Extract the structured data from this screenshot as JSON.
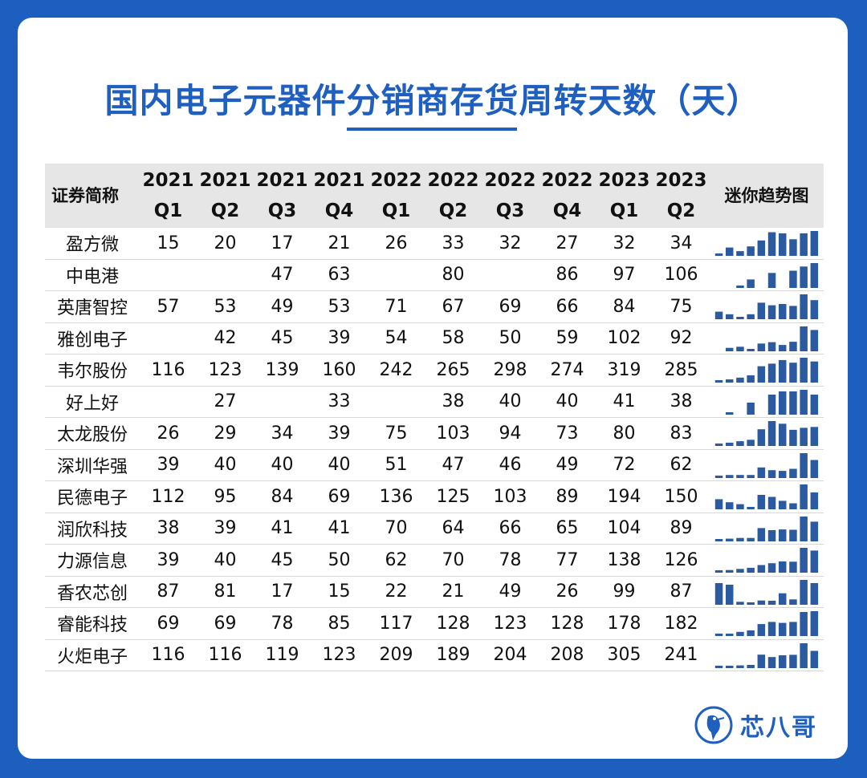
{
  "title": "国内电子元器件分销商存货周转天数（天）",
  "header": {
    "name_col": "证券简称",
    "trend_col": "迷你趋势图"
  },
  "colors": {
    "accent": "#1f5fbf",
    "bar": "#2c5aa0",
    "header_bg": "#e6e6e6"
  },
  "logo": {
    "icon": "bird-logo-icon",
    "text": "芯八哥"
  },
  "chart_data": {
    "type": "table",
    "title": "国内电子元器件分销商存货周转天数（天）",
    "columns": [
      {
        "year": "2021",
        "quarter": "Q1"
      },
      {
        "year": "2021",
        "quarter": "Q2"
      },
      {
        "year": "2021",
        "quarter": "Q3"
      },
      {
        "year": "2021",
        "quarter": "Q4"
      },
      {
        "year": "2022",
        "quarter": "Q1"
      },
      {
        "year": "2022",
        "quarter": "Q2"
      },
      {
        "year": "2022",
        "quarter": "Q3"
      },
      {
        "year": "2022",
        "quarter": "Q4"
      },
      {
        "year": "2023",
        "quarter": "Q1"
      },
      {
        "year": "2023",
        "quarter": "Q2"
      }
    ],
    "rows": [
      {
        "name": "盈方微",
        "values": [
          15,
          20,
          17,
          21,
          26,
          33,
          32,
          27,
          32,
          34
        ]
      },
      {
        "name": "中电港",
        "values": [
          null,
          null,
          47,
          63,
          null,
          80,
          null,
          86,
          97,
          106
        ]
      },
      {
        "name": "英唐智控",
        "values": [
          57,
          53,
          49,
          53,
          71,
          67,
          69,
          66,
          84,
          75
        ]
      },
      {
        "name": "雅创电子",
        "values": [
          null,
          42,
          45,
          39,
          54,
          58,
          50,
          59,
          102,
          92
        ]
      },
      {
        "name": "韦尔股份",
        "values": [
          116,
          123,
          139,
          160,
          242,
          265,
          298,
          274,
          319,
          285
        ]
      },
      {
        "name": "好上好",
        "values": [
          null,
          27,
          null,
          33,
          null,
          38,
          40,
          40,
          41,
          38
        ]
      },
      {
        "name": "太龙股份",
        "values": [
          26,
          29,
          34,
          39,
          75,
          103,
          94,
          73,
          80,
          83
        ]
      },
      {
        "name": "深圳华强",
        "values": [
          39,
          40,
          40,
          40,
          51,
          47,
          46,
          49,
          72,
          62
        ]
      },
      {
        "name": "民德电子",
        "values": [
          112,
          95,
          84,
          69,
          136,
          125,
          103,
          89,
          194,
          150
        ]
      },
      {
        "name": "润欣科技",
        "values": [
          38,
          39,
          41,
          41,
          70,
          64,
          66,
          65,
          104,
          89
        ]
      },
      {
        "name": "力源信息",
        "values": [
          39,
          40,
          45,
          50,
          62,
          70,
          78,
          77,
          138,
          126
        ]
      },
      {
        "name": "香农芯创",
        "values": [
          87,
          81,
          17,
          15,
          22,
          21,
          49,
          26,
          99,
          87
        ]
      },
      {
        "name": "睿能科技",
        "values": [
          69,
          69,
          78,
          85,
          117,
          128,
          123,
          128,
          178,
          182
        ]
      },
      {
        "name": "火炬电子",
        "values": [
          116,
          116,
          119,
          123,
          209,
          189,
          204,
          208,
          305,
          241
        ]
      }
    ]
  }
}
